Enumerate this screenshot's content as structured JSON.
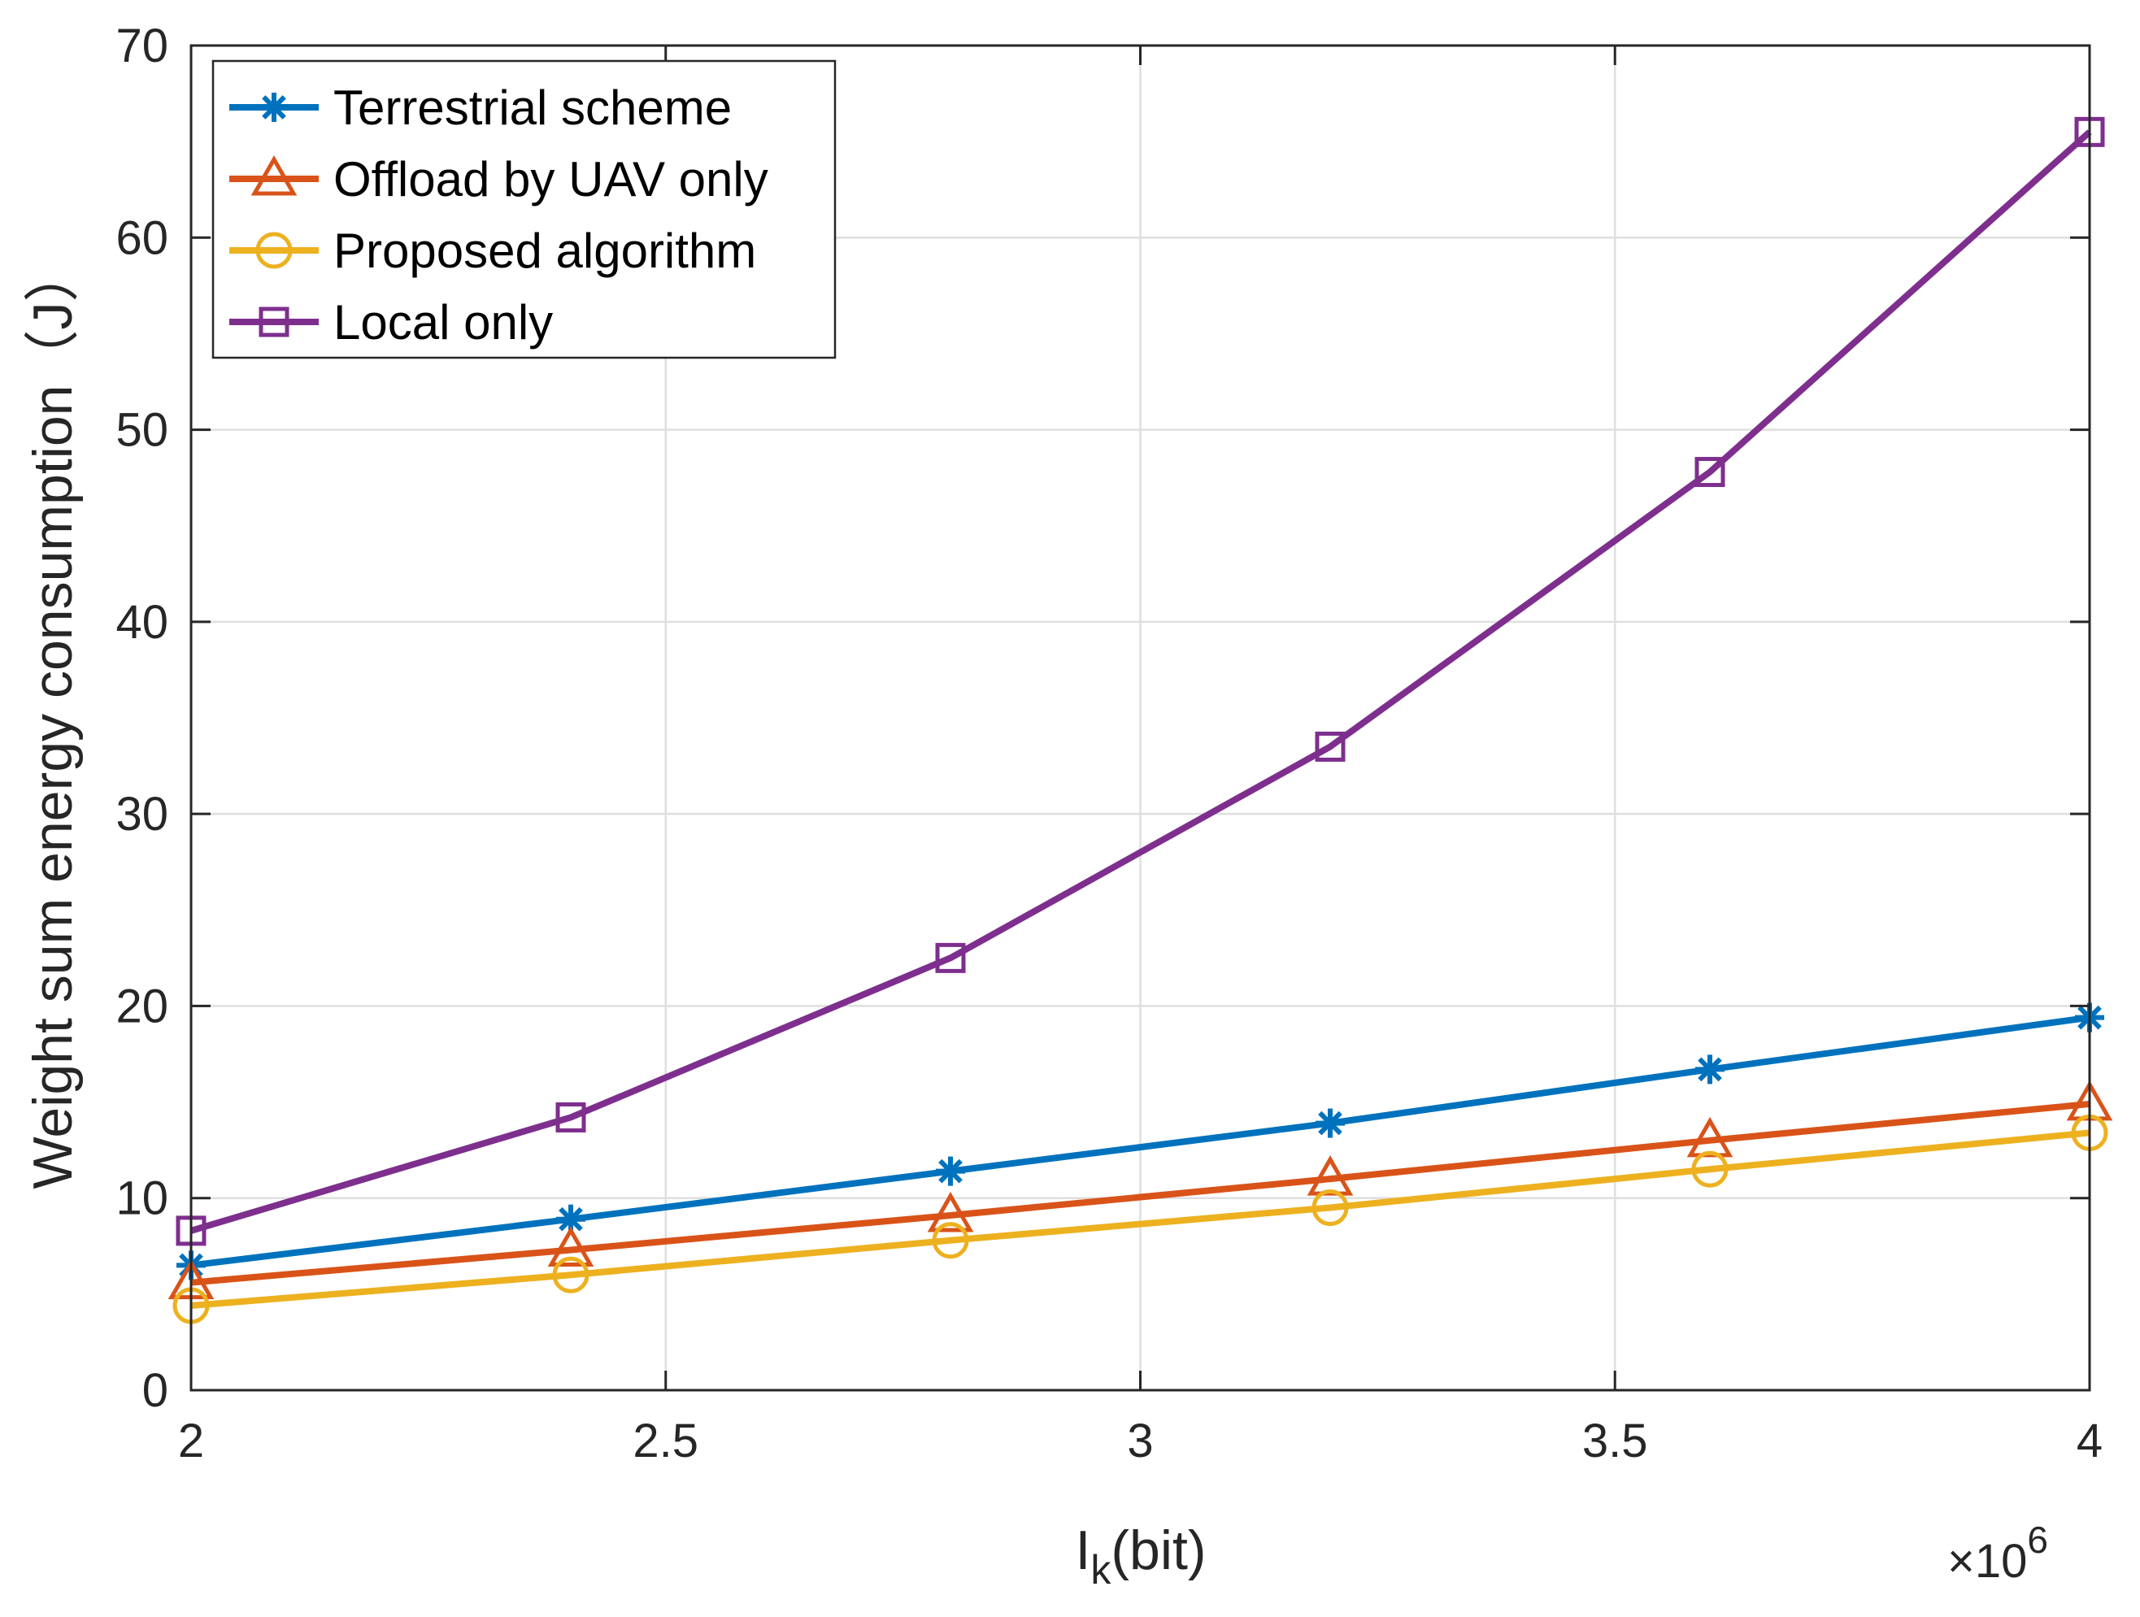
{
  "chart_data": {
    "type": "line",
    "xlabel": {
      "main": "I",
      "sub": "k",
      "rest": "(bit)"
    },
    "ylabel": "Weight sum energy consumption（J）",
    "x_exponent": {
      "base": "×10",
      "exp": "6"
    },
    "xlim": [
      2,
      4
    ],
    "ylim": [
      0,
      70
    ],
    "x_ticks": [
      2,
      2.5,
      3,
      3.5,
      4
    ],
    "x_tick_labels": [
      "2",
      "2.5",
      "3",
      "3.5",
      "4"
    ],
    "y_ticks": [
      0,
      10,
      20,
      30,
      40,
      50,
      60,
      70
    ],
    "y_tick_labels": [
      "0",
      "10",
      "20",
      "30",
      "40",
      "50",
      "60",
      "70"
    ],
    "grid": true,
    "legend_position": "top-left",
    "x": [
      2.0,
      2.4,
      2.8,
      3.2,
      3.6,
      4.0
    ],
    "series": [
      {
        "name": "Terrestrial scheme",
        "color": "#0072BD",
        "marker": "asterisk",
        "values": [
          6.5,
          8.9,
          11.4,
          13.9,
          16.7,
          19.4
        ]
      },
      {
        "name": "Offload by UAV only",
        "color": "#D95319",
        "marker": "triangle",
        "values": [
          5.6,
          7.3,
          9.1,
          11.0,
          13.0,
          14.9
        ]
      },
      {
        "name": "Proposed algorithm",
        "color": "#EDB120",
        "marker": "circle",
        "values": [
          4.4,
          6.0,
          7.8,
          9.5,
          11.5,
          13.4
        ]
      },
      {
        "name": "Local only",
        "color": "#7E2F8E",
        "marker": "square",
        "values": [
          8.3,
          14.2,
          22.5,
          33.5,
          47.8,
          65.5
        ]
      }
    ]
  }
}
